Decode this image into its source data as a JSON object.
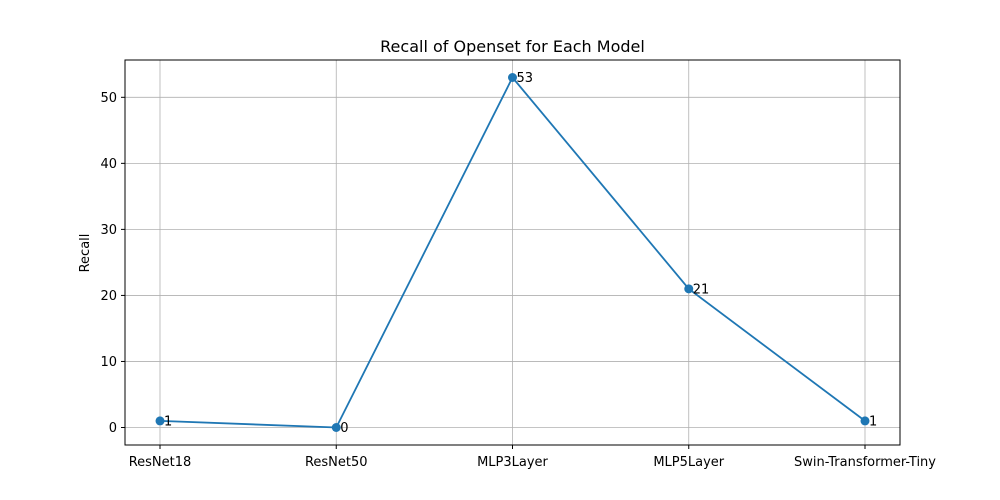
{
  "chart_data": {
    "type": "line",
    "title": "Recall of Openset for Each Model",
    "xlabel": "",
    "ylabel": "Recall",
    "categories": [
      "ResNet18",
      "ResNet50",
      "MLP3Layer",
      "MLP5Layer",
      "Swin-Transformer-Tiny"
    ],
    "series": [
      {
        "values": [
          1,
          0,
          53,
          21,
          1
        ],
        "color": "#1f77b4",
        "marker": "circle"
      }
    ],
    "data_labels": [
      "1",
      "0",
      "53",
      "21",
      "1"
    ],
    "ylim": [
      -2.65,
      55.65
    ],
    "yticks": [
      0,
      10,
      20,
      30,
      40,
      50
    ],
    "grid": true
  }
}
